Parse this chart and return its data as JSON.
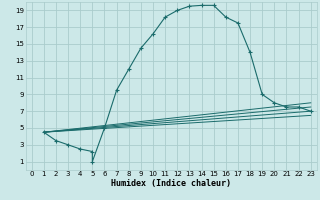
{
  "xlabel": "Humidex (Indice chaleur)",
  "bg_color": "#cce8e8",
  "grid_color": "#aacccc",
  "line_color": "#1a6b6b",
  "xlim": [
    -0.5,
    23.5
  ],
  "ylim": [
    0,
    20
  ],
  "xticks": [
    0,
    1,
    2,
    3,
    4,
    5,
    6,
    7,
    8,
    9,
    10,
    11,
    12,
    13,
    14,
    15,
    16,
    17,
    18,
    19,
    20,
    21,
    22,
    23
  ],
  "yticks": [
    1,
    3,
    5,
    7,
    9,
    11,
    13,
    15,
    17,
    19
  ],
  "line1_x": [
    1,
    2,
    3,
    4,
    5,
    5,
    6,
    7,
    8,
    9,
    10,
    11,
    12,
    13,
    14,
    15,
    16,
    17,
    18,
    19,
    20,
    21,
    22,
    23
  ],
  "line1_y": [
    4.5,
    3.5,
    3.0,
    2.5,
    2.2,
    1.0,
    5.0,
    9.5,
    12.0,
    14.5,
    16.2,
    18.2,
    19.0,
    19.5,
    19.6,
    19.6,
    18.2,
    17.5,
    14.0,
    9.0,
    8.0,
    7.5,
    7.5,
    7.0
  ],
  "line2_x": [
    1,
    23
  ],
  "line2_y": [
    4.5,
    7.5
  ],
  "line3_x": [
    1,
    23
  ],
  "line3_y": [
    4.5,
    7.0
  ],
  "line4_x": [
    1,
    23
  ],
  "line4_y": [
    4.5,
    6.5
  ],
  "line5_x": [
    1,
    23
  ],
  "line5_y": [
    4.5,
    8.0
  ]
}
